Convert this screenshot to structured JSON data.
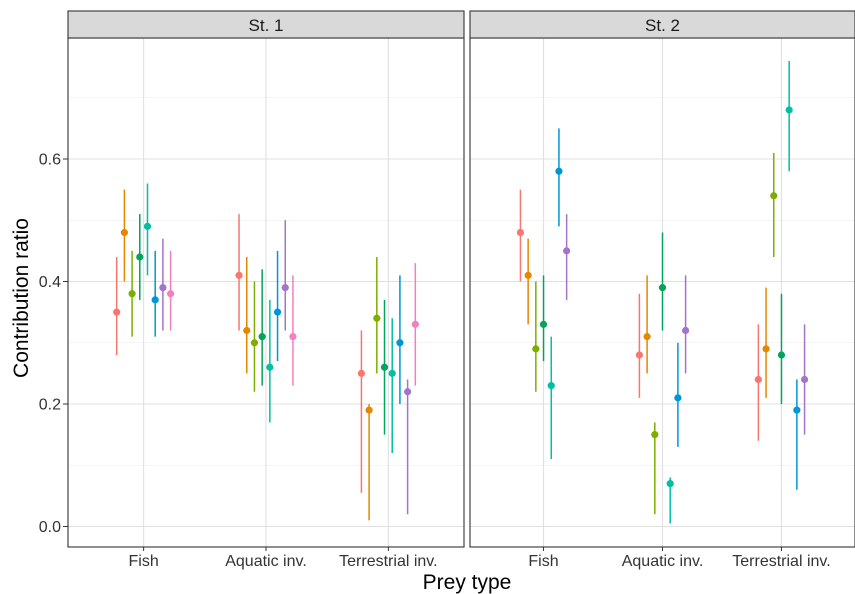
{
  "chart_data": {
    "type": "scatter",
    "ylabel": "Contribution ratio",
    "xlabel": "Prey type",
    "categories": [
      "Fish",
      "Aquatic inv.",
      "Terrestrial inv."
    ],
    "y_ticks": [
      "0.0",
      "0.2",
      "0.4",
      "0.6"
    ],
    "ylim": [
      -0.035,
      0.79
    ],
    "grid": true,
    "legend": "none",
    "colors": [
      "#F8766D",
      "#E58700",
      "#7CAE00",
      "#00A45C",
      "#00BFA5",
      "#0096D6",
      "#A374C8",
      "#F37FC0"
    ],
    "panels": [
      {
        "strip": "St. 1",
        "points": [
          {
            "category": "Fish",
            "series": 0,
            "y": 0.35,
            "low": 0.28,
            "high": 0.44
          },
          {
            "category": "Fish",
            "series": 1,
            "y": 0.48,
            "low": 0.4,
            "high": 0.55
          },
          {
            "category": "Fish",
            "series": 2,
            "y": 0.38,
            "low": 0.31,
            "high": 0.45
          },
          {
            "category": "Fish",
            "series": 3,
            "y": 0.44,
            "low": 0.37,
            "high": 0.51
          },
          {
            "category": "Fish",
            "series": 4,
            "y": 0.49,
            "low": 0.41,
            "high": 0.56
          },
          {
            "category": "Fish",
            "series": 5,
            "y": 0.37,
            "low": 0.31,
            "high": 0.45
          },
          {
            "category": "Fish",
            "series": 6,
            "y": 0.39,
            "low": 0.32,
            "high": 0.47
          },
          {
            "category": "Fish",
            "series": 7,
            "y": 0.38,
            "low": 0.32,
            "high": 0.45
          },
          {
            "category": "Aquatic inv.",
            "series": 0,
            "y": 0.41,
            "low": 0.32,
            "high": 0.51
          },
          {
            "category": "Aquatic inv.",
            "series": 1,
            "y": 0.32,
            "low": 0.25,
            "high": 0.44
          },
          {
            "category": "Aquatic inv.",
            "series": 2,
            "y": 0.3,
            "low": 0.22,
            "high": 0.4
          },
          {
            "category": "Aquatic inv.",
            "series": 3,
            "y": 0.31,
            "low": 0.23,
            "high": 0.42
          },
          {
            "category": "Aquatic inv.",
            "series": 4,
            "y": 0.26,
            "low": 0.17,
            "high": 0.37
          },
          {
            "category": "Aquatic inv.",
            "series": 5,
            "y": 0.35,
            "low": 0.27,
            "high": 0.45
          },
          {
            "category": "Aquatic inv.",
            "series": 6,
            "y": 0.39,
            "low": 0.32,
            "high": 0.5
          },
          {
            "category": "Aquatic inv.",
            "series": 7,
            "y": 0.31,
            "low": 0.23,
            "high": 0.41
          },
          {
            "category": "Terrestrial inv.",
            "series": 0,
            "y": 0.25,
            "low": 0.055,
            "high": 0.32
          },
          {
            "category": "Terrestrial inv.",
            "series": 1,
            "y": 0.19,
            "low": 0.01,
            "high": 0.2
          },
          {
            "category": "Terrestrial inv.",
            "series": 2,
            "y": 0.34,
            "low": 0.25,
            "high": 0.44
          },
          {
            "category": "Terrestrial inv.",
            "series": 3,
            "y": 0.26,
            "low": 0.15,
            "high": 0.37
          },
          {
            "category": "Terrestrial inv.",
            "series": 4,
            "y": 0.25,
            "low": 0.12,
            "high": 0.34
          },
          {
            "category": "Terrestrial inv.",
            "series": 5,
            "y": 0.3,
            "low": 0.2,
            "high": 0.41
          },
          {
            "category": "Terrestrial inv.",
            "series": 6,
            "y": 0.22,
            "low": 0.02,
            "high": 0.24
          },
          {
            "category": "Terrestrial inv.",
            "series": 7,
            "y": 0.33,
            "low": 0.23,
            "high": 0.43
          }
        ]
      },
      {
        "strip": "St. 2",
        "points": [
          {
            "category": "Fish",
            "series": 0,
            "y": 0.48,
            "low": 0.4,
            "high": 0.55
          },
          {
            "category": "Fish",
            "series": 1,
            "y": 0.41,
            "low": 0.33,
            "high": 0.47
          },
          {
            "category": "Fish",
            "series": 2,
            "y": 0.29,
            "low": 0.22,
            "high": 0.4
          },
          {
            "category": "Fish",
            "series": 3,
            "y": 0.33,
            "low": 0.27,
            "high": 0.41
          },
          {
            "category": "Fish",
            "series": 4,
            "y": 0.23,
            "low": 0.11,
            "high": 0.31
          },
          {
            "category": "Fish",
            "series": 5,
            "y": 0.58,
            "low": 0.49,
            "high": 0.65
          },
          {
            "category": "Fish",
            "series": 6,
            "y": 0.45,
            "low": 0.37,
            "high": 0.51
          },
          {
            "category": "Aquatic inv.",
            "series": 0,
            "y": 0.28,
            "low": 0.21,
            "high": 0.38
          },
          {
            "category": "Aquatic inv.",
            "series": 1,
            "y": 0.31,
            "low": 0.25,
            "high": 0.41
          },
          {
            "category": "Aquatic inv.",
            "series": 2,
            "y": 0.15,
            "low": 0.02,
            "high": 0.17
          },
          {
            "category": "Aquatic inv.",
            "series": 3,
            "y": 0.39,
            "low": 0.32,
            "high": 0.48
          },
          {
            "category": "Aquatic inv.",
            "series": 4,
            "y": 0.07,
            "low": 0.005,
            "high": 0.08
          },
          {
            "category": "Aquatic inv.",
            "series": 5,
            "y": 0.21,
            "low": 0.13,
            "high": 0.3
          },
          {
            "category": "Aquatic inv.",
            "series": 6,
            "y": 0.32,
            "low": 0.25,
            "high": 0.41
          },
          {
            "category": "Terrestrial inv.",
            "series": 0,
            "y": 0.24,
            "low": 0.14,
            "high": 0.33
          },
          {
            "category": "Terrestrial inv.",
            "series": 1,
            "y": 0.29,
            "low": 0.21,
            "high": 0.39
          },
          {
            "category": "Terrestrial inv.",
            "series": 2,
            "y": 0.54,
            "low": 0.44,
            "high": 0.61
          },
          {
            "category": "Terrestrial inv.",
            "series": 3,
            "y": 0.28,
            "low": 0.2,
            "high": 0.38
          },
          {
            "category": "Terrestrial inv.",
            "series": 4,
            "y": 0.68,
            "low": 0.58,
            "high": 0.76
          },
          {
            "category": "Terrestrial inv.",
            "series": 5,
            "y": 0.19,
            "low": 0.06,
            "high": 0.24
          },
          {
            "category": "Terrestrial inv.",
            "series": 6,
            "y": 0.24,
            "low": 0.15,
            "high": 0.33
          }
        ]
      }
    ]
  }
}
